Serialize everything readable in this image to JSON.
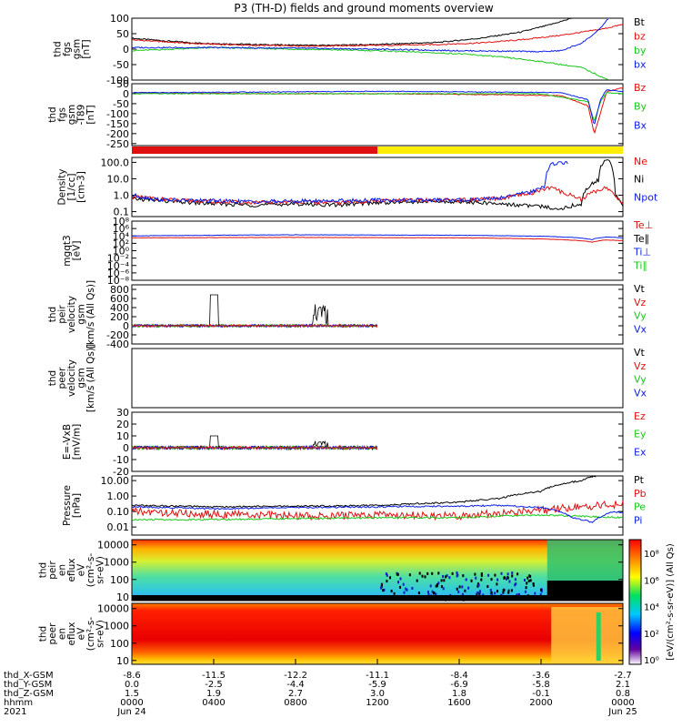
{
  "title": "P3 (TH-D) fields and ground moments overview",
  "colors": {
    "black": "#000000",
    "red": "#e01010",
    "green": "#19c819",
    "blue": "#0a1ee6",
    "yellow": "#ffee00"
  },
  "chart_data": {
    "type": "line",
    "time_range": {
      "start_hours": 0,
      "end_hours": 24
    },
    "x_ticks": {
      "hours": [
        0,
        4,
        8,
        12,
        16,
        20,
        24
      ],
      "rows": [
        {
          "label": "thd_X-GSM",
          "values": [
            "-8.6",
            "-11.5",
            "-12.2",
            "-11.1",
            "-8.4",
            "-3.6",
            "-2.7"
          ]
        },
        {
          "label": "thd_Y-GSM",
          "values": [
            "0.0",
            "-2.5",
            "-4.4",
            "-5.9",
            "-6.9",
            "-5.8",
            "2.1"
          ]
        },
        {
          "label": "thd_Z-GSM",
          "values": [
            "1.5",
            "1.9",
            "2.7",
            "3.0",
            "1.8",
            "-0.1",
            "0.8"
          ]
        },
        {
          "label": "hhmm",
          "values": [
            "0000",
            "0400",
            "0800",
            "1200",
            "1600",
            "2000",
            "0000"
          ]
        },
        {
          "label": "2021",
          "values": [
            "Jun 24",
            "",
            "",
            "",
            "",
            "",
            "Jun 25"
          ]
        }
      ]
    },
    "panels": [
      {
        "id": "fgs",
        "ylabel": [
          "thd",
          "fgs",
          "gsm",
          "[nT]"
        ],
        "yscale": "linear",
        "ylim": [
          -100,
          100
        ],
        "ticks": [
          "100",
          "50",
          "0",
          "-50",
          "-100"
        ],
        "legend": [
          {
            "text": "Bt",
            "color": "black"
          },
          {
            "text": "bz",
            "color": "red"
          },
          {
            "text": "by",
            "color": "green"
          },
          {
            "text": "bx",
            "color": "blue"
          }
        ]
      },
      {
        "id": "fgs_t89",
        "ylabel": [
          "thd",
          "fgs",
          "gsm",
          "-T89",
          "[nT]"
        ],
        "yscale": "linear",
        "ylim": [
          -260,
          50
        ],
        "ticks": [
          "50",
          "0",
          "-50",
          "-100",
          "-150",
          "-200",
          "-250"
        ],
        "legend": [
          {
            "text": "Bz",
            "color": "red"
          },
          {
            "text": "By",
            "color": "green"
          },
          {
            "text": "Bx",
            "color": "blue"
          }
        ]
      },
      {
        "id": "density",
        "ylabel": [
          "Density",
          "[1/cc]",
          "[cm-3]"
        ],
        "yscale": "log",
        "ylim": [
          0.05,
          200
        ],
        "ticks": [
          "100.0",
          "10.0",
          "1.0",
          "0.1"
        ],
        "legend": [
          {
            "text": "Ne",
            "color": "red"
          },
          {
            "text": "Ni",
            "color": "black"
          },
          {
            "text": "Npot",
            "color": "blue"
          }
        ]
      },
      {
        "id": "temp",
        "ylabel": [
          "mgqt3",
          "[eV]"
        ],
        "yscale": "log",
        "ylim": [
          1e-08,
          100000000.0
        ],
        "ticks": [
          "10⁸",
          "10⁶",
          "10⁴",
          "10²",
          "10⁰",
          "10⁻²",
          "10⁻⁴",
          "10⁻⁶",
          "10⁻⁸"
        ],
        "legend": [
          {
            "text": "Te⊥",
            "color": "red"
          },
          {
            "text": "Te∥",
            "color": "black"
          },
          {
            "text": "Ti⊥",
            "color": "blue"
          },
          {
            "text": "Ti∥",
            "color": "green"
          }
        ]
      },
      {
        "id": "peir_vel",
        "ylabel": [
          "thd",
          "peir",
          "velocity",
          "gsm",
          "[km/s (All Qs)]"
        ],
        "yscale": "linear",
        "ylim": [
          -400,
          900
        ],
        "ticks": [
          "800",
          "600",
          "400",
          "200",
          "0",
          "-200",
          "-400"
        ],
        "legend": [
          {
            "text": "Vt",
            "color": "black"
          },
          {
            "text": "Vz",
            "color": "red"
          },
          {
            "text": "Vy",
            "color": "green"
          },
          {
            "text": "Vx",
            "color": "blue"
          }
        ]
      },
      {
        "id": "peer_vel",
        "ylabel": [
          "thd",
          "peer",
          "velocity",
          "gsm",
          "[km/s (All Qs)]"
        ],
        "yscale": "linear",
        "ylim": [
          0,
          1
        ],
        "ticks": [],
        "legend": [
          {
            "text": "Vt",
            "color": "black"
          },
          {
            "text": "Vz",
            "color": "red"
          },
          {
            "text": "Vy",
            "color": "green"
          },
          {
            "text": "Vx",
            "color": "blue"
          }
        ]
      },
      {
        "id": "efield",
        "ylabel": [
          "E=-VxB",
          "[mV/m]"
        ],
        "yscale": "linear",
        "ylim": [
          -20,
          30
        ],
        "ticks": [
          "30",
          "20",
          "10",
          "0",
          "-10",
          "-20"
        ],
        "legend": [
          {
            "text": "Ez",
            "color": "red"
          },
          {
            "text": "Ey",
            "color": "green"
          },
          {
            "text": "Ex",
            "color": "blue"
          }
        ]
      },
      {
        "id": "pressure",
        "ylabel": [
          "Pressure",
          "[nPa]"
        ],
        "yscale": "log",
        "ylim": [
          0.003,
          20
        ],
        "ticks": [
          "10.00",
          "1.00",
          "0.10",
          "0.01"
        ],
        "legend": [
          {
            "text": "Pt",
            "color": "black"
          },
          {
            "text": "Pb",
            "color": "red"
          },
          {
            "text": "Pe",
            "color": "green"
          },
          {
            "text": "Pi",
            "color": "blue"
          }
        ]
      },
      {
        "id": "peir_eflux",
        "ylabel": [
          "thd",
          "peir",
          "en",
          "eflux",
          "eV",
          "(cm²-s-",
          "sr-eV)"
        ],
        "yscale": "log",
        "ylim": [
          6,
          20000
        ],
        "ticks": [
          "10000",
          "1000",
          "100",
          "10"
        ],
        "legend": []
      },
      {
        "id": "peer_eflux",
        "ylabel": [
          "thd",
          "peer",
          "en",
          "eflux",
          "eV",
          "(cm²-s-",
          "sr-eV)"
        ],
        "yscale": "log",
        "ylim": [
          6,
          20000
        ],
        "ticks": [
          "10000",
          "1000",
          "100",
          "10"
        ],
        "legend": []
      }
    ],
    "colorbar": {
      "label": "[eV/(cm²-s-sr-eV)] (All Qs)",
      "ticks": [
        "10⁸",
        "10⁶",
        "10⁴",
        "10²",
        "10⁰"
      ]
    },
    "series_notes": {
      "fgs": {
        "Bt": [
          [
            0,
            35
          ],
          [
            3,
            20
          ],
          [
            6,
            15
          ],
          [
            9,
            12
          ],
          [
            12,
            15
          ],
          [
            15,
            22
          ],
          [
            17,
            35
          ],
          [
            19,
            55
          ],
          [
            20.5,
            80
          ],
          [
            21.5,
            100
          ]
        ],
        "bz": [
          [
            0,
            30
          ],
          [
            3,
            18
          ],
          [
            6,
            12
          ],
          [
            9,
            10
          ],
          [
            12,
            12
          ],
          [
            15,
            15
          ],
          [
            17,
            20
          ],
          [
            19,
            30
          ],
          [
            21,
            45
          ],
          [
            22,
            55
          ],
          [
            23,
            65
          ],
          [
            24,
            80
          ]
        ],
        "by": [
          [
            0,
            -5
          ],
          [
            4,
            5
          ],
          [
            8,
            0
          ],
          [
            12,
            -5
          ],
          [
            16,
            -15
          ],
          [
            18,
            -25
          ],
          [
            20,
            -40
          ],
          [
            22,
            -60
          ],
          [
            23.3,
            -100
          ]
        ],
        "bx": [
          [
            0,
            5
          ],
          [
            4,
            5
          ],
          [
            8,
            3
          ],
          [
            12,
            0
          ],
          [
            16,
            -5
          ],
          [
            20,
            -8
          ],
          [
            21,
            -5
          ],
          [
            22,
            20
          ],
          [
            22.8,
            60
          ],
          [
            23.3,
            100
          ]
        ]
      },
      "fgs_t89": {
        "Bz": [
          [
            0,
            5
          ],
          [
            6,
            0
          ],
          [
            12,
            0
          ],
          [
            18,
            -5
          ],
          [
            21,
            -10
          ],
          [
            22.3,
            -60
          ],
          [
            22.6,
            -200
          ],
          [
            22.9,
            -100
          ],
          [
            23.2,
            10
          ],
          [
            24,
            30
          ]
        ],
        "By": [
          [
            0,
            0
          ],
          [
            12,
            0
          ],
          [
            20,
            0
          ],
          [
            22.3,
            -40
          ],
          [
            22.6,
            -140
          ],
          [
            22.9,
            -40
          ],
          [
            23.2,
            5
          ],
          [
            24,
            0
          ]
        ],
        "Bx": [
          [
            0,
            5
          ],
          [
            6,
            8
          ],
          [
            12,
            12
          ],
          [
            18,
            8
          ],
          [
            21,
            5
          ],
          [
            22.3,
            -30
          ],
          [
            22.6,
            -160
          ],
          [
            22.9,
            -30
          ],
          [
            23.2,
            20
          ],
          [
            24,
            10
          ]
        ]
      },
      "density": {
        "Ni": [
          [
            0,
            0.6
          ],
          [
            2,
            0.4
          ],
          [
            4,
            0.3
          ],
          [
            6,
            0.25
          ],
          [
            8,
            0.3
          ],
          [
            10,
            0.25
          ],
          [
            12,
            0.35
          ],
          [
            14,
            0.4
          ],
          [
            16,
            0.4
          ],
          [
            18,
            0.3
          ],
          [
            20,
            0.2
          ],
          [
            21,
            0.15
          ],
          [
            22,
            0.3
          ],
          [
            22.8,
            8
          ],
          [
            23.2,
            150
          ],
          [
            23.6,
            1
          ],
          [
            24,
            0.2
          ]
        ],
        "Ne": [
          [
            0,
            0.8
          ],
          [
            2,
            0.5
          ],
          [
            4,
            0.4
          ],
          [
            6,
            0.35
          ],
          [
            8,
            0.4
          ],
          [
            10,
            0.35
          ],
          [
            12,
            0.45
          ],
          [
            14,
            0.5
          ],
          [
            16,
            0.5
          ],
          [
            18,
            0.6
          ],
          [
            19.5,
            1.2
          ],
          [
            20.5,
            3
          ],
          [
            21,
            1.5
          ],
          [
            22,
            0.5
          ],
          [
            22.8,
            2
          ],
          [
            23.2,
            3
          ],
          [
            23.6,
            0.8
          ],
          [
            24,
            0.3
          ]
        ],
        "Npot": [
          [
            0,
            1
          ],
          [
            1,
            0.6
          ],
          [
            2,
            0.5
          ],
          [
            6,
            0.4
          ],
          [
            12,
            0.5
          ],
          [
            16,
            0.5
          ],
          [
            18,
            0.7
          ],
          [
            19.5,
            1.5
          ],
          [
            20.2,
            3
          ],
          [
            20.5,
            80
          ],
          [
            21.3,
            100
          ]
        ]
      },
      "temp": {
        "Ti": [
          [
            0,
            10000
          ],
          [
            8,
            20000
          ],
          [
            16,
            15000
          ],
          [
            20,
            8000
          ],
          [
            22.5,
            1000
          ],
          [
            23.2,
            5000
          ],
          [
            24,
            3000
          ]
        ],
        "Te": [
          [
            0,
            3000
          ],
          [
            8,
            4000
          ],
          [
            16,
            3000
          ],
          [
            20,
            1500
          ],
          [
            22.5,
            200
          ],
          [
            23.2,
            800
          ],
          [
            24,
            500
          ]
        ]
      },
      "peir_vel": {
        "active_until_hours": 12
      },
      "efield": {
        "active_until_hours": 12
      },
      "pressure": {
        "Pt": [
          [
            0,
            0.25
          ],
          [
            4,
            0.2
          ],
          [
            8,
            0.22
          ],
          [
            12,
            0.25
          ],
          [
            16,
            0.4
          ],
          [
            18,
            0.7
          ],
          [
            20,
            2
          ],
          [
            22,
            10
          ],
          [
            22.7,
            20
          ]
        ],
        "Pb": [
          [
            0,
            0.1
          ],
          [
            3,
            0.07
          ],
          [
            6,
            0.06
          ],
          [
            9,
            0.05
          ],
          [
            12,
            0.06
          ],
          [
            16,
            0.05
          ],
          [
            18,
            0.08
          ],
          [
            20,
            0.12
          ],
          [
            22,
            0.2
          ],
          [
            24,
            0.3
          ]
        ],
        "Pe": [
          [
            0,
            0.03
          ],
          [
            4,
            0.03
          ],
          [
            8,
            0.035
          ],
          [
            12,
            0.04
          ],
          [
            16,
            0.04
          ],
          [
            18,
            0.05
          ],
          [
            20,
            0.06
          ],
          [
            22,
            0.05
          ],
          [
            24,
            0.04
          ]
        ],
        "Pi": [
          [
            0,
            0.2
          ],
          [
            4,
            0.15
          ],
          [
            8,
            0.18
          ],
          [
            12,
            0.2
          ],
          [
            16,
            0.22
          ],
          [
            18,
            0.25
          ],
          [
            20,
            0.18
          ],
          [
            21.5,
            0.04
          ],
          [
            22.5,
            0.02
          ],
          [
            23,
            0.05
          ],
          [
            23.6,
            0.1
          ],
          [
            24,
            0.08
          ]
        ]
      }
    },
    "mode_bar": {
      "red_until_hours": 12,
      "yellow_from_hours": 12
    }
  }
}
